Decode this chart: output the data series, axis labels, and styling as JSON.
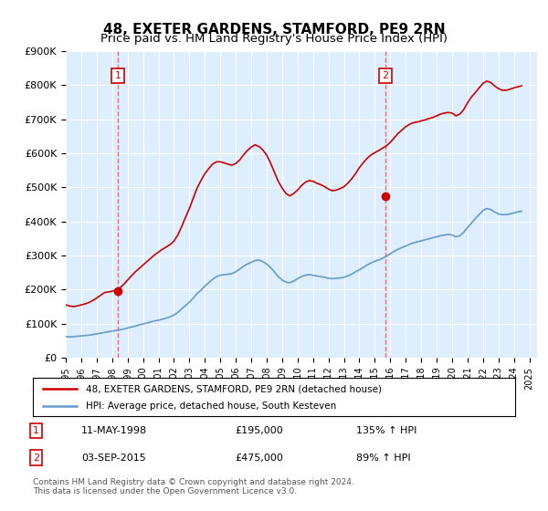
{
  "title": "48, EXETER GARDENS, STAMFORD, PE9 2RN",
  "subtitle": "Price paid vs. HM Land Registry's House Price Index (HPI)",
  "title_fontsize": 11,
  "subtitle_fontsize": 9.5,
  "ylabel": "",
  "ylim": [
    0,
    900000
  ],
  "yticks": [
    0,
    100000,
    200000,
    300000,
    400000,
    500000,
    600000,
    700000,
    800000,
    900000
  ],
  "ytick_labels": [
    "£0",
    "£100K",
    "£200K",
    "£300K",
    "£400K",
    "£500K",
    "£600K",
    "£700K",
    "£800K",
    "£900K"
  ],
  "xlim_start": 1995.0,
  "xlim_end": 2025.5,
  "sale1": {
    "date_num": 1998.36,
    "price": 195000,
    "label": "1"
  },
  "sale2": {
    "date_num": 2015.67,
    "price": 475000,
    "label": "2"
  },
  "sale1_date_str": "11-MAY-1998",
  "sale1_price_str": "£195,000",
  "sale1_hpi_str": "135% ↑ HPI",
  "sale2_date_str": "03-SEP-2015",
  "sale2_price_str": "£475,000",
  "sale2_hpi_str": "89% ↑ HPI",
  "legend_line1": "48, EXETER GARDENS, STAMFORD, PE9 2RN (detached house)",
  "legend_line2": "HPI: Average price, detached house, South Kesteven",
  "footer": "Contains HM Land Registry data © Crown copyright and database right 2024.\nThis data is licensed under the Open Government Licence v3.0.",
  "red_color": "#cc0000",
  "blue_color": "#6699cc",
  "vline_color": "#ff6666",
  "bg_color": "#ddeeff",
  "grid_color": "#ffffff",
  "hpi_data": {
    "years": [
      1995.0,
      1995.25,
      1995.5,
      1995.75,
      1996.0,
      1996.25,
      1996.5,
      1996.75,
      1997.0,
      1997.25,
      1997.5,
      1997.75,
      1998.0,
      1998.25,
      1998.5,
      1998.75,
      1999.0,
      1999.25,
      1999.5,
      1999.75,
      2000.0,
      2000.25,
      2000.5,
      2000.75,
      2001.0,
      2001.25,
      2001.5,
      2001.75,
      2002.0,
      2002.25,
      2002.5,
      2002.75,
      2003.0,
      2003.25,
      2003.5,
      2003.75,
      2004.0,
      2004.25,
      2004.5,
      2004.75,
      2005.0,
      2005.25,
      2005.5,
      2005.75,
      2006.0,
      2006.25,
      2006.5,
      2006.75,
      2007.0,
      2007.25,
      2007.5,
      2007.75,
      2008.0,
      2008.25,
      2008.5,
      2008.75,
      2009.0,
      2009.25,
      2009.5,
      2009.75,
      2010.0,
      2010.25,
      2010.5,
      2010.75,
      2011.0,
      2011.25,
      2011.5,
      2011.75,
      2012.0,
      2012.25,
      2012.5,
      2012.75,
      2013.0,
      2013.25,
      2013.5,
      2013.75,
      2014.0,
      2014.25,
      2014.5,
      2014.75,
      2015.0,
      2015.25,
      2015.5,
      2015.75,
      2016.0,
      2016.25,
      2016.5,
      2016.75,
      2017.0,
      2017.25,
      2017.5,
      2017.75,
      2018.0,
      2018.25,
      2018.5,
      2018.75,
      2019.0,
      2019.25,
      2019.5,
      2019.75,
      2020.0,
      2020.25,
      2020.5,
      2020.75,
      2021.0,
      2021.25,
      2021.5,
      2021.75,
      2022.0,
      2022.25,
      2022.5,
      2022.75,
      2023.0,
      2023.25,
      2023.5,
      2023.75,
      2024.0,
      2024.25,
      2024.5
    ],
    "values": [
      62000,
      61000,
      62000,
      63000,
      64000,
      65000,
      66000,
      68000,
      70000,
      72000,
      74000,
      76000,
      78000,
      80000,
      82000,
      84000,
      87000,
      90000,
      93000,
      96000,
      99000,
      102000,
      105000,
      108000,
      110000,
      113000,
      116000,
      120000,
      125000,
      133000,
      143000,
      153000,
      163000,
      175000,
      188000,
      198000,
      210000,
      220000,
      230000,
      238000,
      242000,
      244000,
      245000,
      247000,
      252000,
      260000,
      268000,
      275000,
      280000,
      285000,
      287000,
      282000,
      275000,
      265000,
      252000,
      238000,
      228000,
      222000,
      220000,
      225000,
      232000,
      238000,
      242000,
      244000,
      242000,
      240000,
      238000,
      236000,
      233000,
      232000,
      233000,
      234000,
      236000,
      240000,
      245000,
      252000,
      258000,
      265000,
      272000,
      278000,
      283000,
      287000,
      292000,
      298000,
      305000,
      312000,
      318000,
      323000,
      328000,
      333000,
      337000,
      340000,
      343000,
      346000,
      349000,
      352000,
      355000,
      358000,
      360000,
      362000,
      360000,
      355000,
      358000,
      368000,
      382000,
      395000,
      408000,
      420000,
      432000,
      438000,
      435000,
      428000,
      422000,
      420000,
      420000,
      422000,
      425000,
      428000,
      430000
    ]
  },
  "red_data": {
    "years": [
      1995.0,
      1995.25,
      1995.5,
      1995.75,
      1996.0,
      1996.25,
      1996.5,
      1996.75,
      1997.0,
      1997.25,
      1997.5,
      1997.75,
      1998.0,
      1998.25,
      1998.5,
      1998.75,
      1999.0,
      1999.25,
      1999.5,
      1999.75,
      2000.0,
      2000.25,
      2000.5,
      2000.75,
      2001.0,
      2001.25,
      2001.5,
      2001.75,
      2002.0,
      2002.25,
      2002.5,
      2002.75,
      2003.0,
      2003.25,
      2003.5,
      2003.75,
      2004.0,
      2004.25,
      2004.5,
      2004.75,
      2005.0,
      2005.25,
      2005.5,
      2005.75,
      2006.0,
      2006.25,
      2006.5,
      2006.75,
      2007.0,
      2007.25,
      2007.5,
      2007.75,
      2008.0,
      2008.25,
      2008.5,
      2008.75,
      2009.0,
      2009.25,
      2009.5,
      2009.75,
      2010.0,
      2010.25,
      2010.5,
      2010.75,
      2011.0,
      2011.25,
      2011.5,
      2011.75,
      2012.0,
      2012.25,
      2012.5,
      2012.75,
      2013.0,
      2013.25,
      2013.5,
      2013.75,
      2014.0,
      2014.25,
      2014.5,
      2014.75,
      2015.0,
      2015.25,
      2015.5,
      2015.75,
      2016.0,
      2016.25,
      2016.5,
      2016.75,
      2017.0,
      2017.25,
      2017.5,
      2017.75,
      2018.0,
      2018.25,
      2018.5,
      2018.75,
      2019.0,
      2019.25,
      2019.5,
      2019.75,
      2020.0,
      2020.25,
      2020.5,
      2020.75,
      2021.0,
      2021.25,
      2021.5,
      2021.75,
      2022.0,
      2022.25,
      2022.5,
      2022.75,
      2023.0,
      2023.25,
      2023.5,
      2023.75,
      2024.0,
      2024.25,
      2024.5
    ],
    "values": [
      155000,
      152000,
      150000,
      152000,
      155000,
      158000,
      162000,
      168000,
      175000,
      183000,
      191000,
      193000,
      195000,
      198000,
      205000,
      215000,
      228000,
      240000,
      252000,
      262000,
      272000,
      282000,
      292000,
      302000,
      310000,
      318000,
      325000,
      332000,
      342000,
      360000,
      385000,
      412000,
      438000,
      468000,
      498000,
      520000,
      540000,
      555000,
      568000,
      575000,
      575000,
      572000,
      568000,
      565000,
      570000,
      580000,
      595000,
      608000,
      618000,
      625000,
      620000,
      610000,
      595000,
      572000,
      545000,
      518000,
      498000,
      482000,
      475000,
      482000,
      492000,
      505000,
      515000,
      520000,
      518000,
      512000,
      508000,
      502000,
      495000,
      490000,
      492000,
      496000,
      502000,
      512000,
      525000,
      540000,
      558000,
      572000,
      585000,
      595000,
      602000,
      608000,
      615000,
      622000,
      632000,
      645000,
      658000,
      668000,
      678000,
      685000,
      690000,
      692000,
      695000,
      698000,
      702000,
      705000,
      710000,
      715000,
      718000,
      720000,
      718000,
      710000,
      715000,
      728000,
      748000,
      765000,
      778000,
      792000,
      805000,
      812000,
      808000,
      798000,
      790000,
      785000,
      785000,
      788000,
      792000,
      795000,
      798000
    ]
  }
}
